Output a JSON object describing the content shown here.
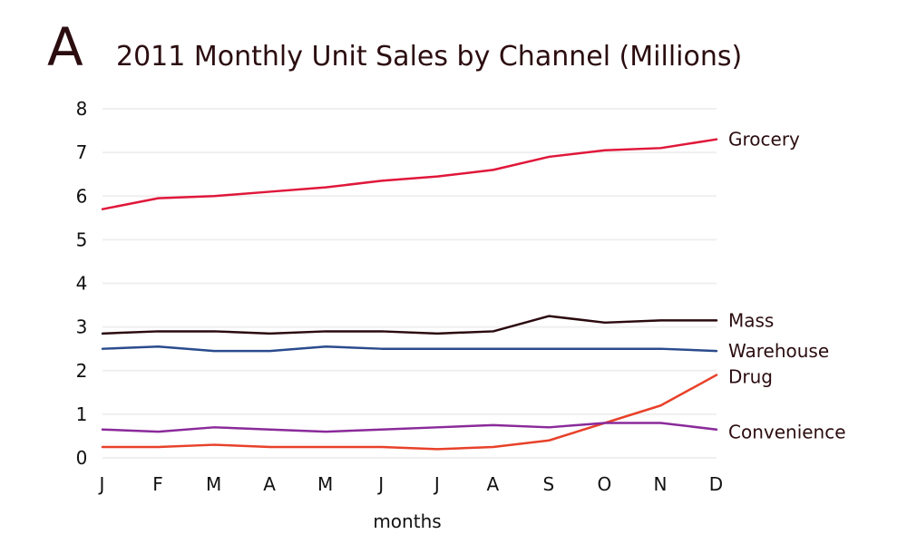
{
  "panel_letter": "A",
  "chart_data": {
    "type": "line",
    "title": "2011 Monthly Unit Sales by Channel (Millions)",
    "xlabel": "months",
    "ylabel": "",
    "ylim": [
      0,
      8
    ],
    "yticks": [
      "0",
      "1",
      "2",
      "3",
      "4",
      "5",
      "6",
      "7",
      "8"
    ],
    "categories": [
      "J",
      "F",
      "M",
      "A",
      "M",
      "J",
      "J",
      "A",
      "S",
      "O",
      "N",
      "D"
    ],
    "grid": "horizontal",
    "legend": "direct labels at right end of each line",
    "series": [
      {
        "name": "Grocery",
        "color": "#e0173a",
        "values": [
          5.7,
          5.95,
          6.0,
          6.1,
          6.2,
          6.35,
          6.45,
          6.6,
          6.9,
          7.05,
          7.1,
          7.3
        ]
      },
      {
        "name": "Mass",
        "color": "#2b0a0e",
        "values": [
          2.85,
          2.9,
          2.9,
          2.85,
          2.9,
          2.9,
          2.85,
          2.9,
          3.25,
          3.1,
          3.15,
          3.15
        ]
      },
      {
        "name": "Warehouse",
        "color": "#2a4b8d",
        "values": [
          2.5,
          2.55,
          2.45,
          2.45,
          2.55,
          2.5,
          2.5,
          2.5,
          2.5,
          2.5,
          2.5,
          2.45
        ]
      },
      {
        "name": "Drug",
        "color": "#e8412a",
        "values": [
          0.25,
          0.25,
          0.3,
          0.25,
          0.25,
          0.25,
          0.2,
          0.25,
          0.4,
          0.8,
          1.2,
          1.9
        ]
      },
      {
        "name": "Convenience",
        "color": "#8a2a9a",
        "values": [
          0.65,
          0.6,
          0.7,
          0.65,
          0.6,
          0.65,
          0.7,
          0.75,
          0.7,
          0.8,
          0.8,
          0.65
        ]
      }
    ]
  }
}
